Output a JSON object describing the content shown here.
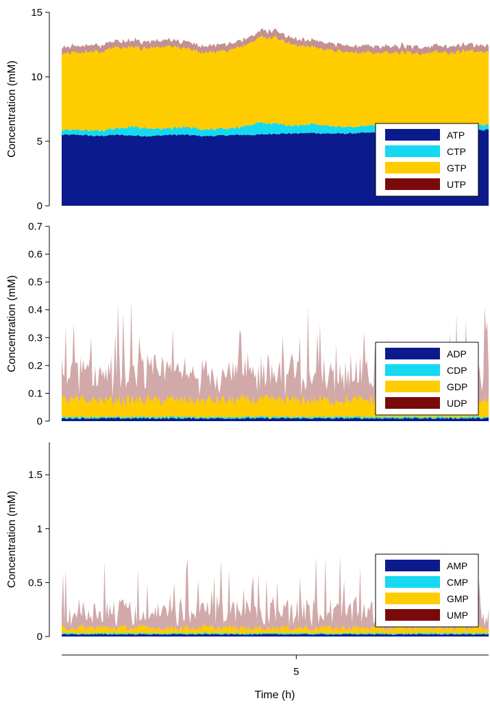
{
  "chart_data": [
    {
      "type": "area",
      "stacked": true,
      "ylabel": "Concentration (mM)",
      "ylim": [
        0,
        15
      ],
      "yticks": [
        0,
        5,
        10,
        15
      ],
      "legend_position": "lower-right",
      "series": [
        {
          "name": "ATP",
          "color": "#0b1a8c",
          "base": [
            5.5,
            5.5,
            5.4,
            5.5,
            5.45,
            5.4,
            5.5,
            5.5,
            5.4,
            5.45,
            5.5,
            5.5,
            5.6,
            5.6,
            5.65,
            5.6,
            5.6,
            5.65,
            5.7,
            5.7,
            5.75,
            5.8,
            5.8,
            5.85,
            5.9
          ],
          "noise": 0.06
        },
        {
          "name": "CTP",
          "color": "#14d9f0",
          "base": [
            0.3,
            0.4,
            0.4,
            0.5,
            0.7,
            0.6,
            0.5,
            0.6,
            0.5,
            0.5,
            0.6,
            0.9,
            0.8,
            0.6,
            0.7,
            0.6,
            0.5,
            0.5,
            0.6,
            0.6,
            0.5,
            0.4,
            0.4,
            0.4,
            0.4
          ],
          "noise": 0.08
        },
        {
          "name": "GTP",
          "color": "#ffcc00",
          "base": [
            5.9,
            6.0,
            6.1,
            6.3,
            6.1,
            6.3,
            6.4,
            6.1,
            6.0,
            6.0,
            6.2,
            6.6,
            6.7,
            6.3,
            6.0,
            5.9,
            5.8,
            5.7,
            5.6,
            5.6,
            5.5,
            5.7,
            5.6,
            5.8,
            5.6
          ],
          "noise": 0.12
        },
        {
          "name": "UTP",
          "color": "#7a0a0a",
          "base": [
            0.5,
            0.5,
            0.5,
            0.5,
            0.5,
            0.5,
            0.5,
            0.5,
            0.5,
            0.5,
            0.5,
            0.5,
            0.5,
            0.5,
            0.5,
            0.5,
            0.5,
            0.5,
            0.5,
            0.5,
            0.5,
            0.5,
            0.5,
            0.5,
            0.5
          ],
          "noise": 0.1,
          "spiky": true
        }
      ]
    },
    {
      "type": "area",
      "stacked": true,
      "ylabel": "Concentration (mM)",
      "ylim": [
        0,
        0.7
      ],
      "yticks": [
        0,
        0.1,
        0.2,
        0.3,
        0.4,
        0.5,
        0.6,
        0.7
      ],
      "legend_position": "lower-right",
      "series": [
        {
          "name": "ADP",
          "color": "#0b1a8c",
          "base": [
            0.01,
            0.01,
            0.01,
            0.01,
            0.01,
            0.01,
            0.01,
            0.01,
            0.01,
            0.01,
            0.01,
            0.01,
            0.01,
            0.01,
            0.01,
            0.01,
            0.01,
            0.01,
            0.01,
            0.01,
            0.01,
            0.01,
            0.01,
            0.01,
            0.01
          ],
          "noise": 0.003
        },
        {
          "name": "CDP",
          "color": "#14d9f0",
          "base": [
            0.005,
            0.005,
            0.005,
            0.005,
            0.005,
            0.005,
            0.005,
            0.005,
            0.005,
            0.005,
            0.005,
            0.005,
            0.005,
            0.005,
            0.005,
            0.005,
            0.005,
            0.005,
            0.005,
            0.005,
            0.005,
            0.005,
            0.005,
            0.005,
            0.005
          ],
          "noise": 0.002
        },
        {
          "name": "GDP",
          "color": "#ffcc00",
          "base": [
            0.06,
            0.06,
            0.06,
            0.06,
            0.06,
            0.06,
            0.06,
            0.06,
            0.06,
            0.06,
            0.06,
            0.06,
            0.06,
            0.06,
            0.06,
            0.06,
            0.06,
            0.06,
            0.06,
            0.06,
            0.06,
            0.06,
            0.06,
            0.06,
            0.06
          ],
          "noise": 0.02
        },
        {
          "name": "UDP",
          "color": "#7a0a0a",
          "base": [
            0.09,
            0.09,
            0.09,
            0.09,
            0.09,
            0.09,
            0.09,
            0.09,
            0.09,
            0.09,
            0.09,
            0.09,
            0.09,
            0.09,
            0.09,
            0.09,
            0.09,
            0.09,
            0.09,
            0.09,
            0.09,
            0.09,
            0.09,
            0.09,
            0.09
          ],
          "noise": 0.06,
          "spiky": true
        }
      ]
    },
    {
      "type": "area",
      "stacked": true,
      "ylabel": "Concentration (mM)",
      "ylim": [
        0,
        1.8
      ],
      "yticks": [
        0,
        0.5,
        1,
        1.5
      ],
      "legend_position": "lower-right",
      "series": [
        {
          "name": "AMP",
          "color": "#0b1a8c",
          "base": [
            0.02,
            0.02,
            0.02,
            0.02,
            0.02,
            0.02,
            0.02,
            0.02,
            0.02,
            0.02,
            0.02,
            0.02,
            0.02,
            0.02,
            0.02,
            0.02,
            0.02,
            0.02,
            0.02,
            0.02,
            0.02,
            0.02,
            0.02,
            0.02,
            0.02
          ],
          "noise": 0.005
        },
        {
          "name": "CMP",
          "color": "#14d9f0",
          "base": [
            0.01,
            0.01,
            0.01,
            0.01,
            0.01,
            0.01,
            0.01,
            0.01,
            0.01,
            0.01,
            0.01,
            0.01,
            0.01,
            0.01,
            0.01,
            0.01,
            0.01,
            0.01,
            0.01,
            0.01,
            0.01,
            0.01,
            0.01,
            0.01,
            0.01
          ],
          "noise": 0.004
        },
        {
          "name": "GMP",
          "color": "#ffcc00",
          "base": [
            0.05,
            0.05,
            0.05,
            0.05,
            0.05,
            0.05,
            0.05,
            0.05,
            0.05,
            0.05,
            0.05,
            0.05,
            0.05,
            0.05,
            0.05,
            0.05,
            0.05,
            0.05,
            0.05,
            0.05,
            0.05,
            0.05,
            0.05,
            0.05,
            0.05
          ],
          "noise": 0.03
        },
        {
          "name": "UMP",
          "color": "#7a0a0a",
          "base": [
            0.15,
            0.15,
            0.15,
            0.15,
            0.15,
            0.15,
            0.15,
            0.15,
            0.15,
            0.15,
            0.15,
            0.15,
            0.15,
            0.15,
            0.15,
            0.15,
            0.15,
            0.15,
            0.15,
            0.15,
            0.15,
            0.15,
            0.15,
            0.15,
            0.15
          ],
          "noise": 0.12,
          "spiky": true
        }
      ]
    }
  ],
  "x_axis": {
    "label": "Time (h)",
    "range": [
      0,
      9.1
    ],
    "ticks": [
      5
    ],
    "tick_labels": [
      "5"
    ]
  }
}
